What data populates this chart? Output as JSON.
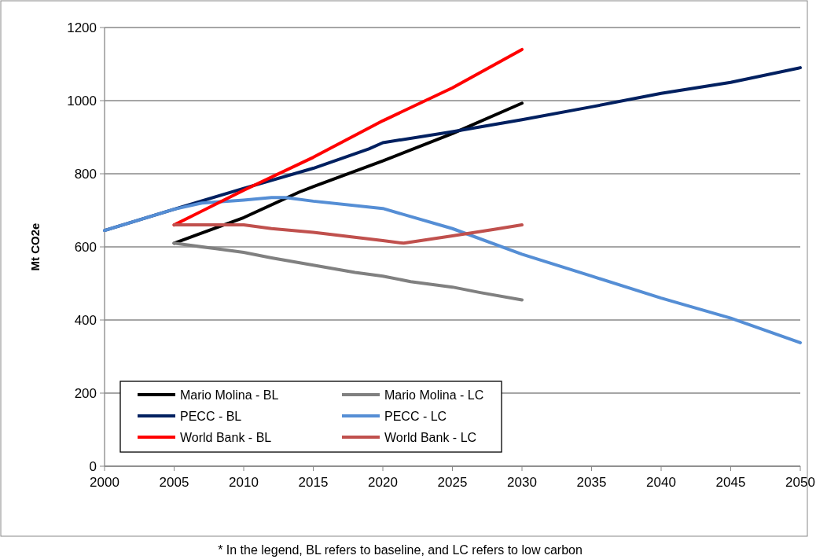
{
  "chart_data": {
    "type": "line",
    "ylabel": "Mt CO2e",
    "xlim": [
      2000,
      2050
    ],
    "xticks": [
      2000,
      2005,
      2010,
      2015,
      2020,
      2025,
      2030,
      2035,
      2040,
      2045,
      2050
    ],
    "ylim": [
      0,
      1200
    ],
    "yticks": [
      0,
      200,
      400,
      600,
      800,
      1000,
      1200
    ],
    "grid": "y",
    "legend": "bottom left",
    "line_style": "solid",
    "marker": "none",
    "annotations": [
      "* In the legend, BL refers to baseline, and LC refers to low carbon"
    ],
    "series": [
      {
        "name": "Mario Molina - BL",
        "color": "#000000",
        "x": [
          2005,
          2010,
          2014,
          2015,
          2020,
          2025,
          2030
        ],
        "values": [
          610,
          680,
          750,
          765,
          835,
          910,
          993
        ]
      },
      {
        "name": "Mario Molina - LC",
        "color": "#808080",
        "x": [
          2005,
          2008,
          2010,
          2012,
          2015,
          2018,
          2020,
          2022,
          2025,
          2027,
          2030
        ],
        "values": [
          610,
          595,
          585,
          570,
          550,
          530,
          520,
          505,
          490,
          475,
          455
        ]
      },
      {
        "name": "PECC - BL",
        "color": "#002060",
        "x": [
          2000,
          2005,
          2010,
          2015,
          2019,
          2020,
          2025,
          2030,
          2035,
          2040,
          2045,
          2050
        ],
        "values": [
          645,
          703,
          760,
          815,
          868,
          885,
          915,
          948,
          983,
          1020,
          1050,
          1090
        ]
      },
      {
        "name": "PECC - LC",
        "color": "#558ed5",
        "x": [
          2000,
          2005,
          2007,
          2010,
          2012,
          2013,
          2015,
          2020,
          2025,
          2030,
          2035,
          2040,
          2045,
          2050
        ],
        "values": [
          645,
          703,
          720,
          728,
          735,
          735,
          725,
          705,
          650,
          580,
          520,
          460,
          405,
          338
        ]
      },
      {
        "name": "World Bank - BL",
        "color": "#ff0000",
        "x": [
          2005,
          2010,
          2015,
          2020,
          2025,
          2030
        ],
        "values": [
          660,
          755,
          845,
          945,
          1035,
          1140
        ]
      },
      {
        "name": "World Bank - LC",
        "color": "#c0504d",
        "x": [
          2005,
          2010,
          2012,
          2015,
          2020,
          2021.5,
          2025,
          2028,
          2030
        ],
        "values": [
          660,
          660,
          650,
          640,
          617,
          610,
          630,
          648,
          660
        ]
      }
    ]
  }
}
